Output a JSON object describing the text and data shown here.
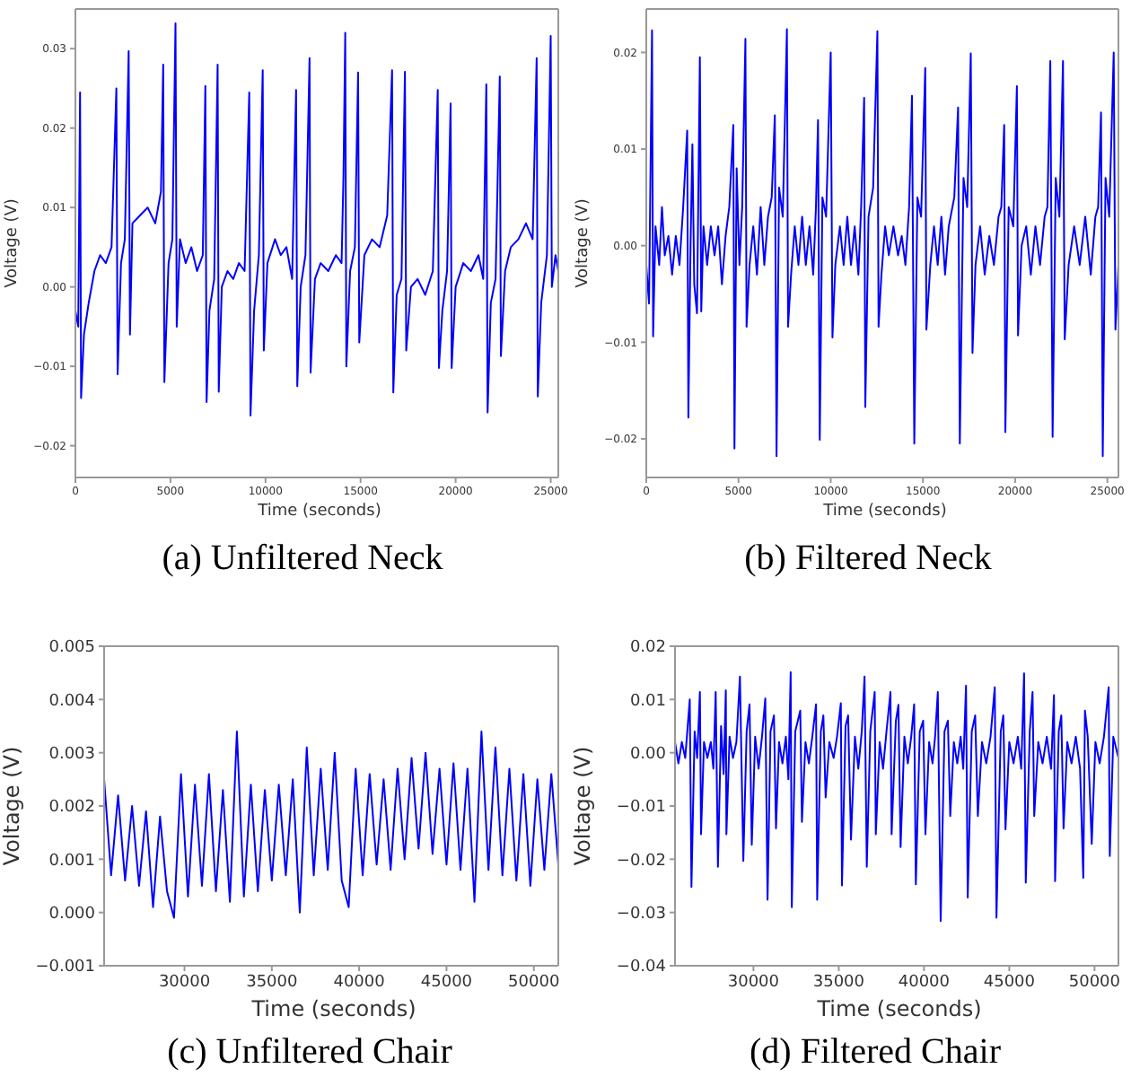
{
  "chart_data": [
    {
      "type": "line",
      "title": "(a) Unfiltered Neck",
      "xlabel": "Time (seconds)",
      "ylabel": "Voltage (V)",
      "color": "#0000ff",
      "xlim": [
        0,
        25400
      ],
      "ylim": [
        -0.024,
        0.035
      ],
      "xticks": [
        0,
        5000,
        10000,
        15000,
        20000,
        25000
      ],
      "yticks": [
        {
          "value": -0.02,
          "label": "−0.02"
        },
        {
          "value": -0.01,
          "label": "−0.01"
        },
        {
          "value": 0,
          "label": "0.00"
        },
        {
          "value": 0.01,
          "label": "0.01"
        },
        {
          "value": 0.02,
          "label": "0.02"
        },
        {
          "value": 0.03,
          "label": "0.03"
        }
      ],
      "x": [
        0,
        150,
        246,
        300,
        450,
        700,
        1000,
        1300,
        1600,
        1900,
        2155,
        2220,
        2400,
        2600,
        2802,
        2870,
        3000,
        3400,
        3800,
        4200,
        4500,
        4618,
        4680,
        4900,
        5100,
        5265,
        5330,
        5500,
        5800,
        6100,
        6400,
        6700,
        6835,
        6900,
        7050,
        7300,
        7481,
        7540,
        7700,
        8000,
        8300,
        8600,
        8900,
        9144,
        9210,
        9400,
        9650,
        9852,
        9910,
        10100,
        10500,
        10800,
        11100,
        11400,
        11607,
        11670,
        11850,
        12100,
        12315,
        12370,
        12600,
        12900,
        13300,
        13700,
        14000,
        14100,
        14193,
        14250,
        14450,
        14700,
        14870,
        14930,
        15200,
        15600,
        16000,
        16400,
        16656,
        16720,
        16900,
        17150,
        17333,
        17400,
        17650,
        18000,
        18400,
        18800,
        19058,
        19120,
        19300,
        19550,
        19735,
        19790,
        20000,
        20400,
        20800,
        21200,
        21450,
        21613,
        21680,
        21850,
        22100,
        22321,
        22380,
        22600,
        22900,
        23300,
        23700,
        24050,
        24261,
        24320,
        24500,
        24800,
        24999,
        25060,
        25250,
        25400
      ],
      "values": [
        -0.003,
        -0.005,
        0.0245,
        -0.014,
        -0.006,
        -0.002,
        0.002,
        0.004,
        0.003,
        0.005,
        0.025,
        -0.011,
        0.003,
        0.006,
        0.0297,
        -0.006,
        0.008,
        0.009,
        0.01,
        0.008,
        0.012,
        0.028,
        -0.012,
        0.003,
        0.006,
        0.0332,
        -0.005,
        0.006,
        0.003,
        0.005,
        0.002,
        0.004,
        0.0253,
        -0.0145,
        -0.003,
        0.001,
        0.028,
        -0.0132,
        0.0,
        0.002,
        0.001,
        0.003,
        0.002,
        0.0245,
        -0.0162,
        -0.003,
        0.004,
        0.0273,
        -0.008,
        0.003,
        0.006,
        0.004,
        0.005,
        0.001,
        0.0248,
        -0.0125,
        0.0,
        0.004,
        0.0288,
        -0.0108,
        0.001,
        0.003,
        0.002,
        0.004,
        0.003,
        0.014,
        0.032,
        -0.01,
        0.002,
        0.005,
        0.027,
        -0.007,
        0.004,
        0.006,
        0.005,
        0.009,
        0.0273,
        -0.0133,
        -0.001,
        0.001,
        0.0271,
        -0.008,
        0.0,
        0.001,
        -0.001,
        0.002,
        0.0248,
        -0.0102,
        -0.003,
        0.002,
        0.0231,
        -0.0102,
        0.0,
        0.003,
        0.002,
        0.004,
        0.001,
        0.0255,
        -0.0158,
        -0.002,
        0.001,
        0.0265,
        -0.0087,
        0.002,
        0.005,
        0.006,
        0.008,
        0.006,
        0.0288,
        -0.0138,
        -0.002,
        0.004,
        0.0316,
        0.0,
        0.004,
        0.002
      ]
    },
    {
      "type": "line",
      "title": "(b) Filtered Neck",
      "xlabel": "Time (seconds)",
      "ylabel": "Voltage (V)",
      "color": "#0000ff",
      "xlim": [
        0,
        25600
      ],
      "ylim": [
        -0.024,
        0.0245
      ],
      "xticks": [
        0,
        5000,
        10000,
        15000,
        20000,
        25000
      ],
      "yticks": [
        {
          "value": -0.02,
          "label": "−0.02"
        },
        {
          "value": -0.01,
          "label": "−0.01"
        },
        {
          "value": 0,
          "label": "0.00"
        },
        {
          "value": 0.01,
          "label": "0.01"
        },
        {
          "value": 0.02,
          "label": "0.02"
        }
      ],
      "x": [
        0,
        150,
        312,
        370,
        500,
        700,
        850,
        1000,
        1200,
        1400,
        1600,
        1800,
        2000,
        2219,
        2281,
        2400,
        2500,
        2600,
        2750,
        2906,
        2980,
        3100,
        3300,
        3500,
        3700,
        3900,
        4100,
        4300,
        4500,
        4719,
        4781,
        4900,
        5050,
        5200,
        5375,
        5437,
        5600,
        5800,
        6000,
        6200,
        6400,
        6600,
        6800,
        6969,
        7062,
        7200,
        7400,
        7625,
        7687,
        7850,
        8050,
        8250,
        8450,
        8650,
        8850,
        9050,
        9200,
        9312,
        9406,
        9550,
        9750,
        10000,
        10094,
        10250,
        10500,
        10700,
        10900,
        11100,
        11300,
        11500,
        11650,
        11812,
        11875,
        12050,
        12300,
        12531,
        12594,
        12750,
        12950,
        13150,
        13400,
        13650,
        13850,
        14050,
        14250,
        14406,
        14531,
        14700,
        14900,
        15125,
        15187,
        15400,
        15600,
        15800,
        16000,
        16200,
        16400,
        16700,
        16906,
        17000,
        17200,
        17400,
        17594,
        17687,
        17850,
        18100,
        18350,
        18600,
        18850,
        19100,
        19250,
        19406,
        19469,
        19650,
        19900,
        20094,
        20156,
        20350,
        20600,
        20850,
        21100,
        21350,
        21600,
        21750,
        21906,
        22031,
        22200,
        22400,
        22594,
        22687,
        22900,
        23200,
        23500,
        23800,
        24100,
        24350,
        24500,
        24656,
        24750,
        24900,
        25100,
        25344,
        25437,
        25600
      ],
      "values": [
        -0.002,
        -0.006,
        0.0223,
        -0.0094,
        0.002,
        -0.002,
        0.004,
        -0.001,
        0.001,
        -0.003,
        0.001,
        -0.002,
        0.004,
        0.0119,
        -0.0178,
        0.0,
        0.0105,
        -0.004,
        -0.007,
        0.0195,
        -0.0068,
        0.002,
        -0.002,
        0.002,
        -0.001,
        0.002,
        -0.004,
        0.001,
        0.004,
        0.0125,
        -0.021,
        0.008,
        -0.002,
        0.004,
        0.0214,
        -0.0084,
        -0.002,
        0.002,
        -0.003,
        0.004,
        -0.002,
        0.003,
        0.005,
        0.0135,
        -0.0218,
        0.006,
        0.003,
        0.0224,
        -0.0084,
        -0.003,
        0.002,
        -0.002,
        0.003,
        -0.002,
        0.002,
        -0.003,
        0.004,
        0.013,
        -0.0201,
        0.005,
        0.003,
        0.02,
        -0.0095,
        -0.002,
        0.002,
        -0.002,
        0.003,
        -0.002,
        0.002,
        -0.003,
        0.004,
        0.0153,
        -0.0167,
        0.003,
        0.006,
        0.0222,
        -0.0084,
        -0.003,
        0.002,
        -0.001,
        0.002,
        -0.001,
        0.001,
        -0.002,
        0.004,
        0.0155,
        -0.0205,
        0.005,
        0.003,
        0.0184,
        -0.0087,
        -0.002,
        0.002,
        -0.002,
        0.003,
        -0.003,
        0.002,
        0.005,
        0.0143,
        -0.0205,
        0.007,
        0.004,
        0.0199,
        -0.0111,
        -0.002,
        0.002,
        -0.003,
        0.001,
        -0.002,
        0.003,
        0.004,
        0.0125,
        -0.0193,
        0.004,
        0.002,
        0.0165,
        -0.0093,
        0.0,
        0.002,
        -0.003,
        0.002,
        -0.002,
        0.003,
        0.004,
        0.0191,
        -0.0198,
        0.007,
        0.003,
        0.0191,
        -0.0097,
        -0.002,
        0.002,
        -0.002,
        0.003,
        -0.003,
        0.003,
        0.004,
        0.0138,
        -0.0218,
        0.007,
        0.003,
        0.02,
        -0.0087,
        -0.002
      ]
    },
    {
      "type": "line",
      "title": "(c) Unfiltered Chair",
      "xlabel": "Time (seconds)",
      "ylabel": "Voltage (V)",
      "color": "#0000ff",
      "xlim": [
        25400,
        51400
      ],
      "ylim": [
        -0.001,
        0.005
      ],
      "xticks": [
        30000,
        35000,
        40000,
        45000,
        50000
      ],
      "yticks": [
        {
          "value": -0.001,
          "label": "−0.001"
        },
        {
          "value": 0,
          "label": "0.000"
        },
        {
          "value": 0.001,
          "label": "0.001"
        },
        {
          "value": 0.002,
          "label": "0.002"
        },
        {
          "value": 0.003,
          "label": "0.003"
        },
        {
          "value": 0.004,
          "label": "0.004"
        },
        {
          "value": 0.005,
          "label": "0.005"
        }
      ],
      "x": [
        25400,
        25800,
        26200,
        26600,
        27000,
        27400,
        27800,
        28200,
        28600,
        29000,
        29400,
        29800,
        30200,
        30600,
        31000,
        31400,
        31800,
        32200,
        32600,
        33000,
        33400,
        33800,
        34200,
        34600,
        35000,
        35400,
        35800,
        36200,
        36600,
        37000,
        37400,
        37800,
        38200,
        38600,
        39000,
        39400,
        39800,
        40200,
        40600,
        41000,
        41400,
        41800,
        42200,
        42600,
        43000,
        43400,
        43800,
        44200,
        44600,
        45000,
        45400,
        45800,
        46200,
        46600,
        47000,
        47400,
        47800,
        48200,
        48600,
        49000,
        49400,
        49800,
        50200,
        50600,
        51000,
        51400
      ],
      "values": [
        0.0025,
        0.0007,
        0.0022,
        0.0006,
        0.002,
        0.0005,
        0.0019,
        0.0001,
        0.0018,
        0.0004,
        -0.0001,
        0.0026,
        0.0003,
        0.0024,
        0.0005,
        0.0026,
        0.0004,
        0.0023,
        0.0002,
        0.0034,
        0.0003,
        0.0024,
        0.0004,
        0.0023,
        0.0006,
        0.0024,
        0.0007,
        0.0025,
        0.0,
        0.0031,
        0.0007,
        0.0027,
        0.0008,
        0.003,
        0.0006,
        0.0001,
        0.0027,
        0.0007,
        0.0026,
        0.0009,
        0.0025,
        0.0008,
        0.0027,
        0.001,
        0.0029,
        0.0012,
        0.003,
        0.0011,
        0.0027,
        0.0009,
        0.0028,
        0.0008,
        0.0027,
        0.0002,
        0.0034,
        0.0008,
        0.0031,
        0.0007,
        0.0027,
        0.0006,
        0.0026,
        0.0005,
        0.0025,
        0.0008,
        0.0026,
        0.0009
      ]
    },
    {
      "type": "line",
      "title": "(d) Filtered Chair",
      "xlabel": "Time (seconds)",
      "ylabel": "Voltage (V)",
      "color": "#0000ff",
      "xlim": [
        25400,
        51400
      ],
      "ylim": [
        -0.04,
        0.02
      ],
      "xticks": [
        30000,
        35000,
        40000,
        45000,
        50000
      ],
      "yticks": [
        {
          "value": -0.04,
          "label": "−0.04"
        },
        {
          "value": -0.03,
          "label": "−0.03"
        },
        {
          "value": -0.02,
          "label": "−0.02"
        },
        {
          "value": -0.01,
          "label": "−0.01"
        },
        {
          "value": 0,
          "label": "0.00"
        },
        {
          "value": 0.01,
          "label": "0.01"
        },
        {
          "value": 0.02,
          "label": "0.02"
        }
      ],
      "x": [
        25400,
        25600,
        25800,
        26000,
        26265,
        26364,
        26550,
        26700,
        26860,
        26926,
        27100,
        27300,
        27500,
        27650,
        27785,
        27917,
        28100,
        28250,
        28380,
        28413,
        28600,
        28800,
        29000,
        29207,
        29405,
        29600,
        29769,
        29901,
        30100,
        30300,
        30500,
        30694,
        30826,
        31000,
        31200,
        31322,
        31500,
        31700,
        31900,
        32050,
        32182,
        32248,
        32450,
        32744,
        32843,
        33050,
        33250,
        33450,
        33670,
        33736,
        33950,
        34100,
        34232,
        34450,
        34700,
        34900,
        35124,
        35190,
        35400,
        35550,
        35719,
        35950,
        36150,
        36350,
        36513,
        36645,
        36850,
        37108,
        37174,
        37400,
        37600,
        37800,
        38033,
        38100,
        38350,
        38500,
        38628,
        38850,
        39050,
        39250,
        39422,
        39521,
        39750,
        39950,
        40083,
        40300,
        40500,
        40650,
        40810,
        40976,
        41200,
        41400,
        41538,
        41750,
        41950,
        42150,
        42300,
        42463,
        42563,
        42800,
        43000,
        43157,
        43400,
        43650,
        43900,
        44149,
        44248,
        44500,
        44650,
        44777,
        45000,
        45250,
        45500,
        45700,
        45868,
        45967,
        46200,
        46364,
        46463,
        46700,
        46950,
        47200,
        47450,
        47620,
        47686,
        47900,
        48050,
        48182,
        48400,
        48650,
        48900,
        49150,
        49339,
        49438,
        49600,
        49835,
        50050,
        50300,
        50550,
        50827,
        50893,
        51100,
        51400
      ],
      "values": [
        0.002,
        -0.002,
        0.002,
        -0.001,
        0.01,
        -0.0252,
        0.004,
        -0.001,
        0.0114,
        -0.0153,
        0.002,
        -0.001,
        0.002,
        -0.003,
        0.0114,
        -0.0214,
        0.005,
        -0.004,
        0.0117,
        -0.0153,
        0.003,
        -0.001,
        0.002,
        0.0143,
        -0.0203,
        0.004,
        0.0091,
        -0.0173,
        0.003,
        -0.003,
        0.003,
        0.0102,
        -0.0276,
        0.004,
        0.007,
        -0.0142,
        0.002,
        -0.002,
        0.003,
        -0.005,
        0.0151,
        -0.029,
        0.004,
        0.0079,
        -0.013,
        0.002,
        -0.002,
        0.003,
        0.0091,
        -0.0276,
        0.004,
        0.007,
        -0.0084,
        0.002,
        -0.001,
        0.003,
        0.0093,
        -0.0249,
        0.005,
        0.007,
        -0.0163,
        0.003,
        -0.003,
        0.004,
        0.0143,
        -0.0214,
        0.004,
        0.0114,
        -0.0153,
        0.002,
        -0.003,
        0.004,
        0.0114,
        -0.0153,
        0.006,
        0.009,
        -0.0177,
        0.003,
        -0.002,
        0.003,
        0.0091,
        -0.0247,
        0.004,
        0.006,
        -0.0153,
        0.002,
        -0.002,
        0.003,
        0.0114,
        -0.0316,
        0.004,
        0.006,
        -0.0119,
        0.002,
        -0.002,
        0.003,
        -0.003,
        0.0126,
        -0.0272,
        0.004,
        0.007,
        -0.0119,
        0.002,
        -0.002,
        0.003,
        0.0123,
        -0.031,
        0.004,
        0.007,
        -0.0144,
        0.002,
        -0.002,
        0.003,
        -0.003,
        0.0149,
        -0.0244,
        0.004,
        0.0114,
        -0.0119,
        0.002,
        -0.002,
        0.003,
        -0.003,
        0.0108,
        -0.0241,
        0.004,
        0.007,
        -0.0142,
        0.002,
        -0.002,
        0.003,
        -0.003,
        -0.0235,
        0.0079,
        0.003,
        -0.0171,
        0.002,
        -0.002,
        0.003,
        0.0123,
        -0.0194,
        0.003,
        -0.001
      ]
    }
  ]
}
